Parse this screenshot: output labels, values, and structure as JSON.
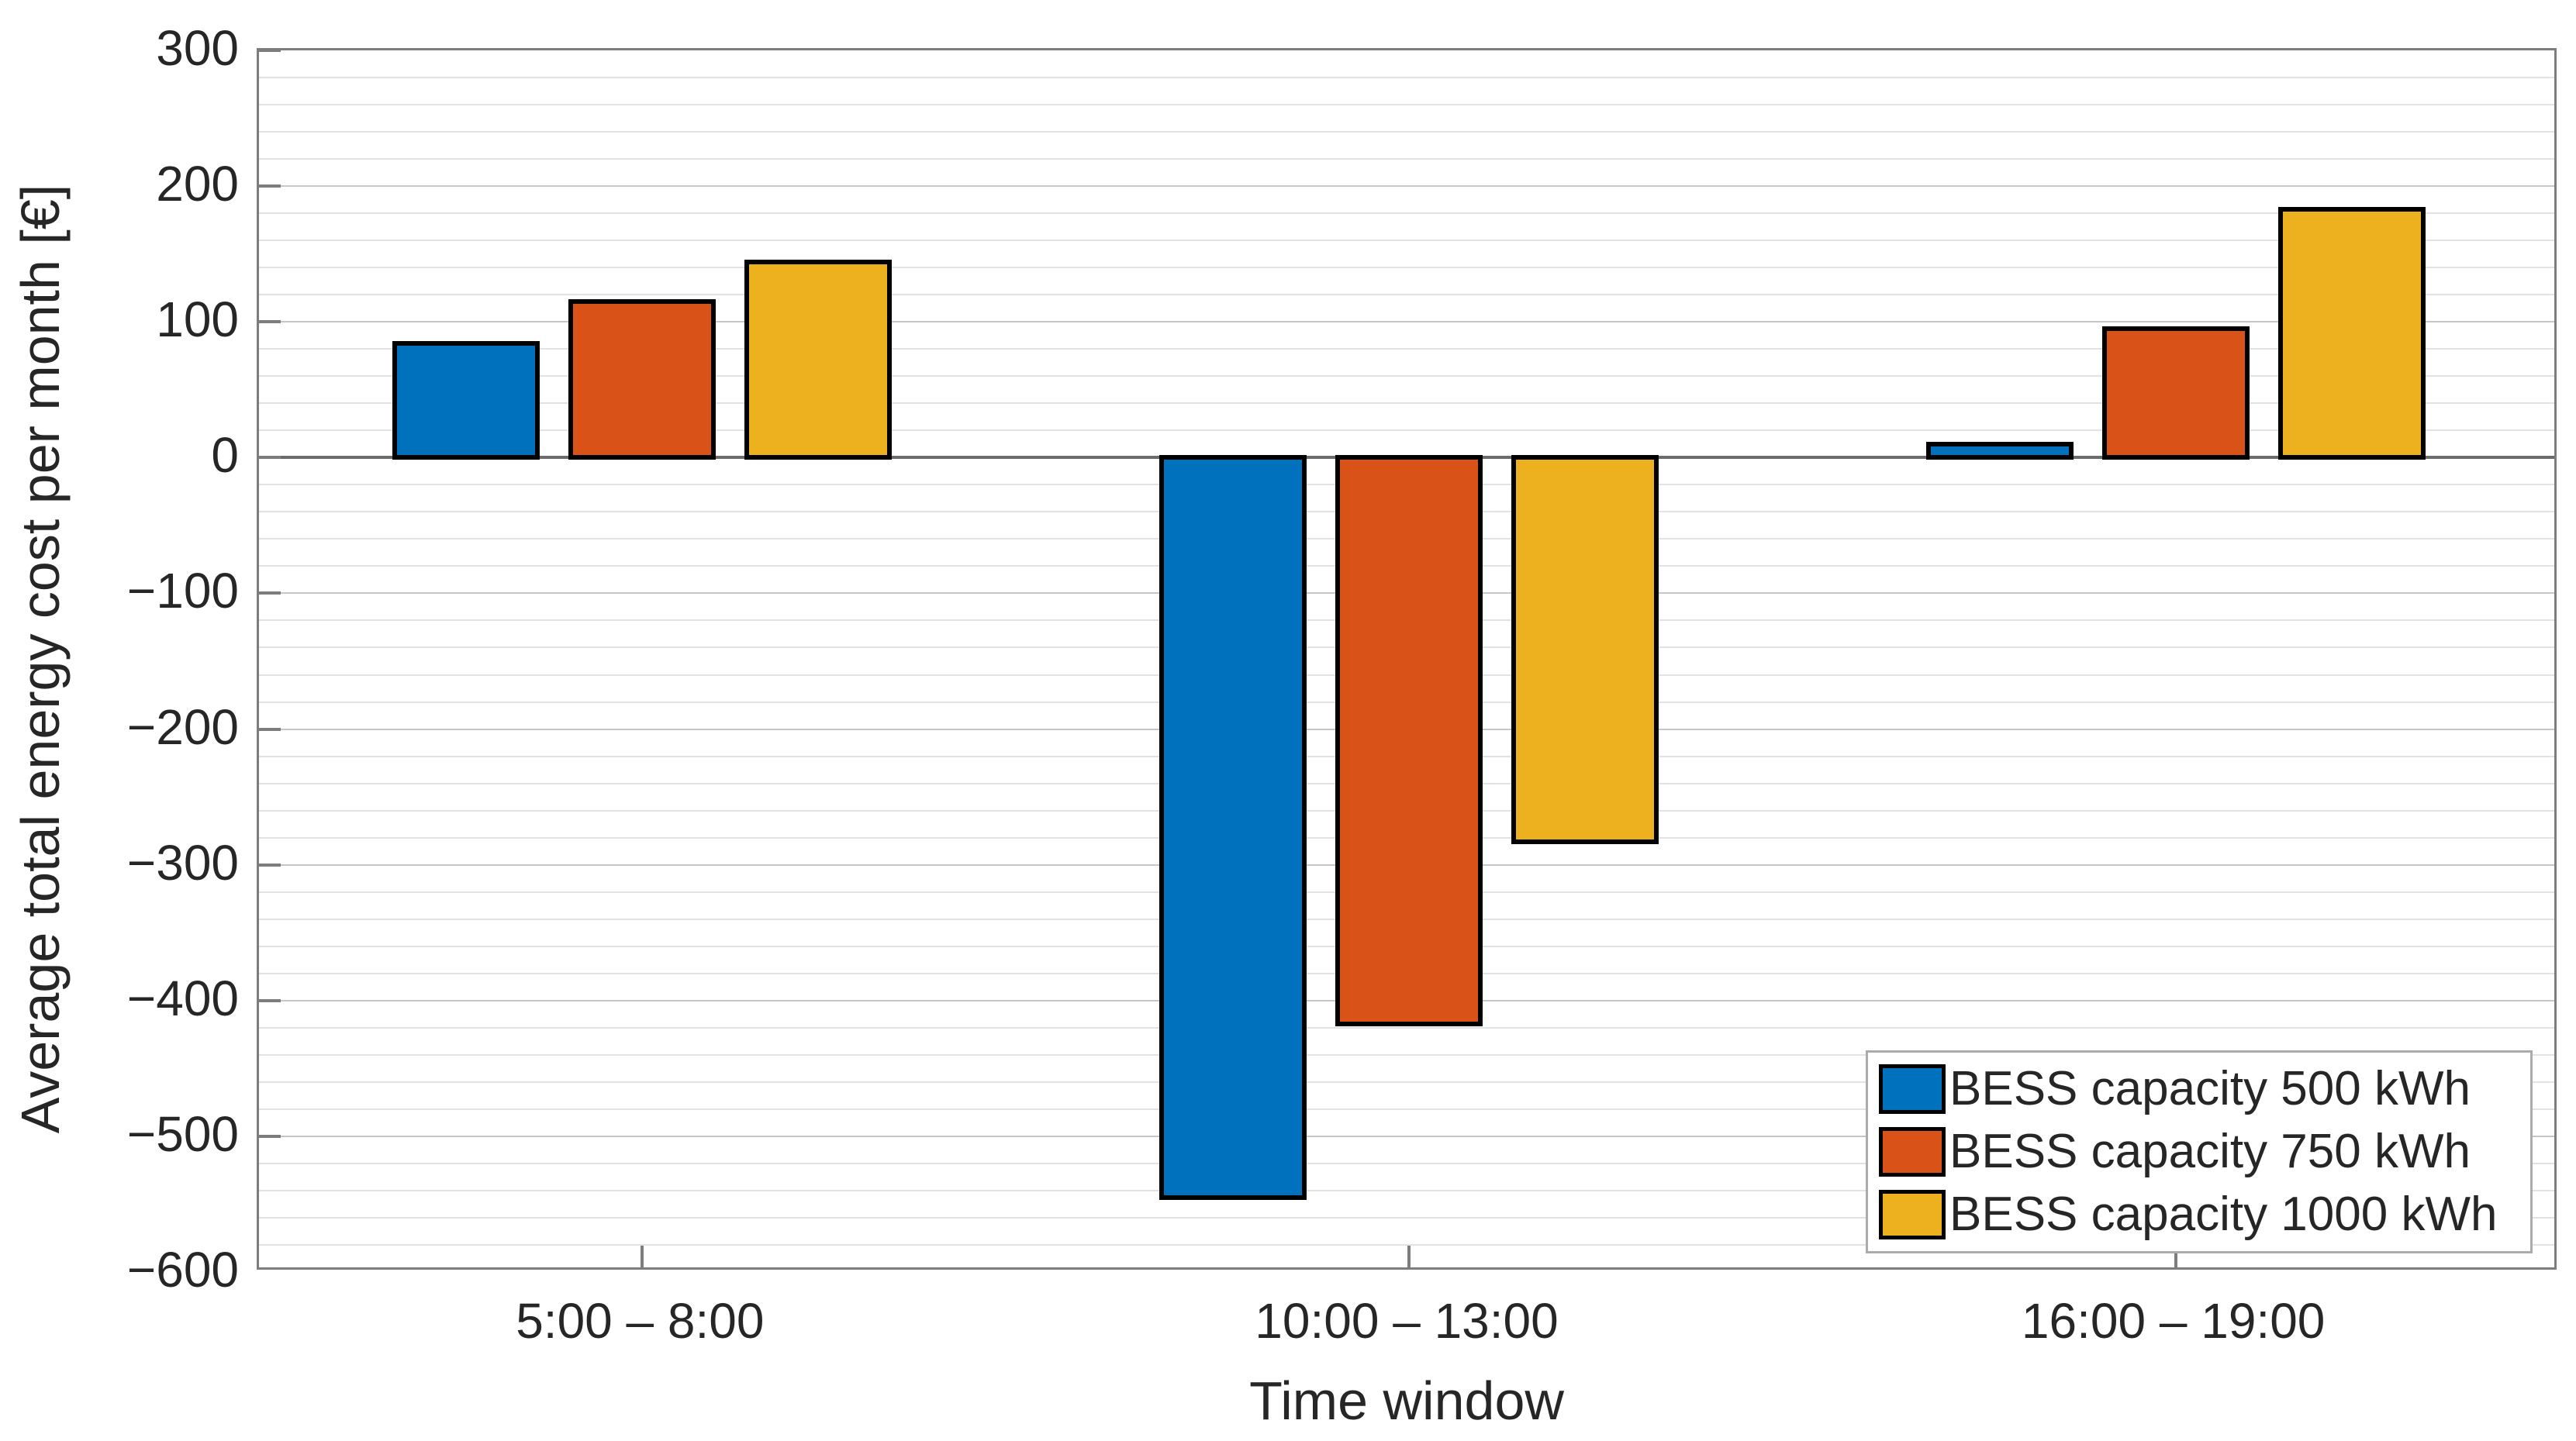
{
  "chart_data": {
    "type": "bar",
    "title": "",
    "xlabel": "Time window",
    "ylabel": "Average total energy cost per month [€]",
    "categories": [
      "5:00 – 8:00",
      "10:00 – 13:00",
      "16:00 – 19:00"
    ],
    "series": [
      {
        "name": "BESS capacity 500 kWh",
        "color": "#0072BD",
        "values": [
          84,
          -545,
          10
        ]
      },
      {
        "name": "BESS capacity 750 kWh",
        "color": "#D95319",
        "values": [
          115,
          -417,
          95
        ]
      },
      {
        "name": "BESS capacity 1000 kWh",
        "color": "#EDB120",
        "values": [
          144,
          -283,
          183
        ]
      }
    ],
    "ylim": [
      -600,
      300
    ],
    "ytick_major_step": 100,
    "ytick_minor_step": 20,
    "yticks": [
      {
        "value": 300,
        "label": "300"
      },
      {
        "value": 200,
        "label": "200"
      },
      {
        "value": 100,
        "label": "100"
      },
      {
        "value": 0,
        "label": "0"
      },
      {
        "value": -100,
        "label": "−100"
      },
      {
        "value": -200,
        "label": "−200"
      },
      {
        "value": -300,
        "label": "−300"
      },
      {
        "value": -400,
        "label": "−400"
      },
      {
        "value": -500,
        "label": "−500"
      },
      {
        "value": -600,
        "label": "−600"
      }
    ],
    "grid": "horizontal",
    "zero_baseline": true,
    "bar_edge_color": "#000000",
    "legend_position": "lower right"
  }
}
